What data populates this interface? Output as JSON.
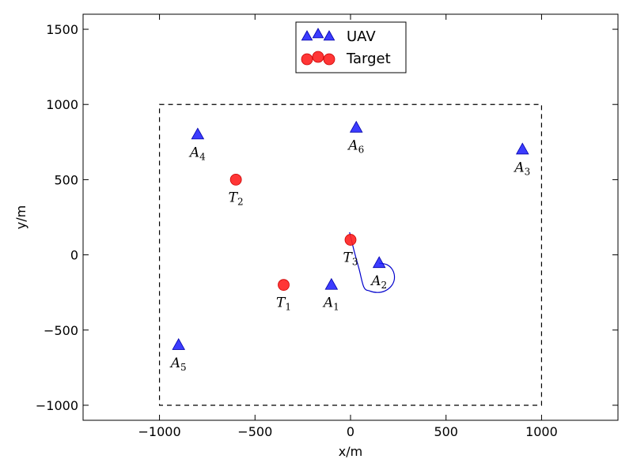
{
  "chart_data": {
    "type": "scatter",
    "xlabel": "x/m",
    "ylabel": "y/m",
    "xlim": [
      -1400,
      1400
    ],
    "ylim": [
      -1100,
      1600
    ],
    "xticks": [
      -1000,
      -500,
      0,
      500,
      1000
    ],
    "yticks": [
      -1000,
      -500,
      0,
      500,
      1000,
      1500
    ],
    "grid": false,
    "legend_position": "top-center",
    "boundary": {
      "x": [
        -1000,
        1000
      ],
      "y": [
        -1000,
        1000
      ],
      "style": "dashed",
      "color": "#000000"
    },
    "series": [
      {
        "name": "UAV",
        "marker": "triangle",
        "color": "#1a1aff",
        "points": [
          {
            "label": "A",
            "sub": "1",
            "x": -100,
            "y": -200
          },
          {
            "label": "A",
            "sub": "2",
            "x": 150,
            "y": -55
          },
          {
            "label": "A",
            "sub": "3",
            "x": 900,
            "y": 700
          },
          {
            "label": "A",
            "sub": "4",
            "x": -800,
            "y": 800
          },
          {
            "label": "A",
            "sub": "5",
            "x": -900,
            "y": -600
          },
          {
            "label": "A",
            "sub": "6",
            "x": 30,
            "y": 845
          }
        ]
      },
      {
        "name": "Target",
        "marker": "circle",
        "color": "#ff2020",
        "points": [
          {
            "label": "T",
            "sub": "1",
            "x": -350,
            "y": -200
          },
          {
            "label": "T",
            "sub": "2",
            "x": -600,
            "y": 500
          },
          {
            "label": "T",
            "sub": "3",
            "x": 0,
            "y": 100
          }
        ]
      }
    ],
    "trajectory": {
      "color": "#0000cc",
      "points": [
        [
          -5,
          150
        ],
        [
          20,
          20
        ],
        [
          45,
          -95
        ],
        [
          70,
          -215
        ],
        [
          100,
          -240
        ],
        [
          140,
          -250
        ],
        [
          180,
          -240
        ],
        [
          215,
          -205
        ],
        [
          230,
          -155
        ],
        [
          220,
          -100
        ],
        [
          190,
          -65
        ],
        [
          150,
          -55
        ]
      ]
    }
  }
}
